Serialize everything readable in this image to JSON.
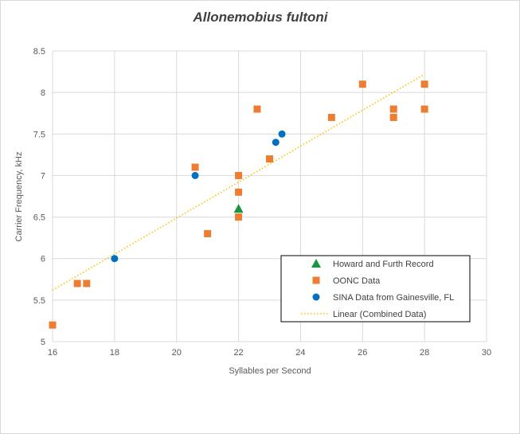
{
  "chart_data": {
    "type": "scatter",
    "title": "Allonemobius fultoni",
    "xlabel": "Syllables per Second",
    "ylabel": "Carrier Frequency, kHz",
    "xlim": [
      16,
      30
    ],
    "ylim": [
      5,
      8.5
    ],
    "x_ticks": [
      "16",
      "18",
      "20",
      "22",
      "24",
      "26",
      "28",
      "30"
    ],
    "y_ticks": [
      "5",
      "5.5",
      "6",
      "6.5",
      "7",
      "7.5",
      "8",
      "8.5"
    ],
    "grid": true,
    "legend_position": "bottom-right",
    "series": [
      {
        "name": "Howard and Furth Record",
        "marker": "triangle",
        "color": "#1a9641",
        "points": [
          [
            22,
            6.6
          ]
        ]
      },
      {
        "name": "OONC Data",
        "marker": "square",
        "color": "#ed7d31",
        "points": [
          [
            16,
            5.2
          ],
          [
            16.8,
            5.7
          ],
          [
            17.1,
            5.7
          ],
          [
            20.6,
            7.1
          ],
          [
            21.0,
            6.3
          ],
          [
            22,
            7.0
          ],
          [
            22,
            6.8
          ],
          [
            22,
            6.5
          ],
          [
            22.6,
            7.8
          ],
          [
            23.0,
            7.2
          ],
          [
            25,
            7.7
          ],
          [
            26,
            8.1
          ],
          [
            27,
            7.8
          ],
          [
            27,
            7.7
          ],
          [
            28,
            8.1
          ],
          [
            28,
            7.8
          ]
        ]
      },
      {
        "name": "SINA Data from Gainesville, FL",
        "marker": "circle",
        "color": "#0070c0",
        "points": [
          [
            18,
            6.0
          ],
          [
            20.6,
            7.0
          ],
          [
            23.2,
            7.4
          ],
          [
            23.4,
            7.5
          ]
        ]
      }
    ],
    "trendline": {
      "name": "Linear (Combined Data)",
      "color": "#ffc000",
      "style": "dotted",
      "from": [
        16,
        5.62
      ],
      "to": [
        28,
        8.22
      ]
    }
  }
}
